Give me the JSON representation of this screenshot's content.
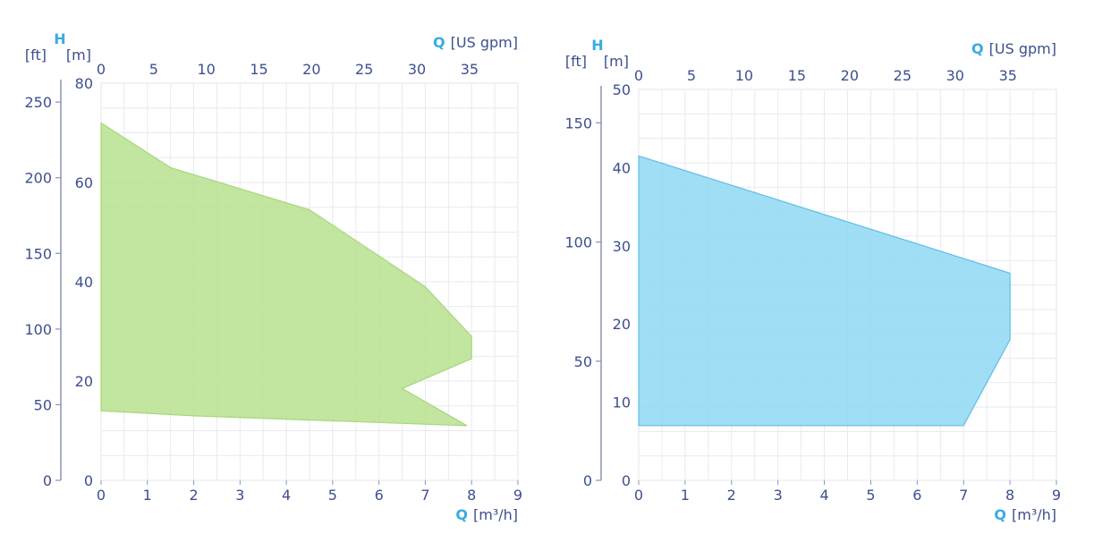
{
  "chart_data": [
    {
      "type": "area",
      "fill_color": "#b7e08f",
      "stroke_color": "#a6d87a",
      "x_axis_bottom": {
        "symbol": "Q",
        "unit": "[m³/h]",
        "range": [
          0,
          9
        ],
        "ticks": [
          "0",
          "1",
          "2",
          "3",
          "4",
          "5",
          "6",
          "7",
          "8",
          "9"
        ]
      },
      "x_axis_top": {
        "symbol": "Q",
        "unit": "[US gpm]",
        "range": [
          0,
          39.6
        ],
        "ticks": [
          "0",
          "5",
          "10",
          "15",
          "20",
          "25",
          "30",
          "35"
        ]
      },
      "y_axis_m": {
        "symbol": "H",
        "unit": "[m]",
        "range": [
          0,
          80
        ],
        "ticks": [
          "0",
          "20",
          "40",
          "60",
          "80"
        ]
      },
      "y_axis_ft": {
        "unit": "[ft]",
        "range": [
          0,
          262.5
        ],
        "ticks": [
          "0",
          "50",
          "100",
          "150",
          "200",
          "250"
        ]
      },
      "grid": true,
      "polygon": [
        {
          "q": 0,
          "h": 72
        },
        {
          "q": 1.5,
          "h": 63
        },
        {
          "q": 4.5,
          "h": 54.5
        },
        {
          "q": 7,
          "h": 39
        },
        {
          "q": 8,
          "h": 29
        },
        {
          "q": 8,
          "h": 24.5
        },
        {
          "q": 6.5,
          "h": 18.5
        },
        {
          "q": 7.9,
          "h": 11
        },
        {
          "q": 2,
          "h": 13
        },
        {
          "q": 0,
          "h": 14
        }
      ]
    },
    {
      "type": "area",
      "fill_color": "#8fd8f5",
      "stroke_color": "#5fbde6",
      "x_axis_bottom": {
        "symbol": "Q",
        "unit": "[m³/h]",
        "range": [
          0,
          9
        ],
        "ticks": [
          "0",
          "1",
          "2",
          "3",
          "4",
          "5",
          "6",
          "7",
          "8",
          "9"
        ]
      },
      "x_axis_top": {
        "symbol": "Q",
        "unit": "[US gpm]",
        "range": [
          0,
          39.6
        ],
        "ticks": [
          "0",
          "5",
          "10",
          "15",
          "20",
          "25",
          "30",
          "35"
        ]
      },
      "y_axis_m": {
        "symbol": "H",
        "unit": "[m]",
        "range": [
          0,
          50
        ],
        "ticks": [
          "0",
          "10",
          "20",
          "30",
          "40",
          "50"
        ]
      },
      "y_axis_ft": {
        "unit": "[ft]",
        "range": [
          0,
          164
        ],
        "ticks": [
          "0",
          "50",
          "100",
          "150"
        ]
      },
      "grid": true,
      "polygon": [
        {
          "q": 0,
          "h": 41.5
        },
        {
          "q": 8,
          "h": 26.5
        },
        {
          "q": 8,
          "h": 18
        },
        {
          "q": 7,
          "h": 7
        },
        {
          "q": 0,
          "h": 7
        }
      ]
    }
  ]
}
